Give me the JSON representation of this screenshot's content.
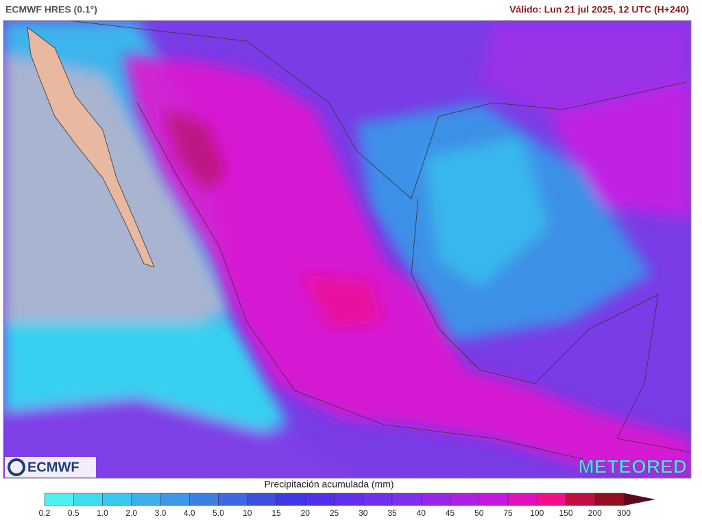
{
  "header": {
    "model": "ECMWF HRES (0.1°)",
    "valid": "Válido: Lun 21 jul 2025, 12 UTC (H+240)"
  },
  "logos": {
    "left": "ECMWF",
    "right": "METEORED"
  },
  "legend": {
    "title": "Precipitación acumulada (mm)",
    "ticks": [
      "0.2",
      "0.5",
      "1.0",
      "2.0",
      "3.0",
      "4.0",
      "5.0",
      "10",
      "15",
      "20",
      "25",
      "30",
      "35",
      "40",
      "45",
      "50",
      "75",
      "100",
      "150",
      "200",
      "300"
    ],
    "colors": [
      "#4ff0f0",
      "#3fdcf0",
      "#38c8f0",
      "#3cb0ec",
      "#3c98e8",
      "#3c80e4",
      "#3c68e0",
      "#3c50dc",
      "#4038e0",
      "#5030e8",
      "#6030ec",
      "#7030ec",
      "#8030ec",
      "#9828e8",
      "#b020e4",
      "#c818e0",
      "#e010c0",
      "#f0108c",
      "#c01040",
      "#901020",
      "#600818"
    ]
  }
}
